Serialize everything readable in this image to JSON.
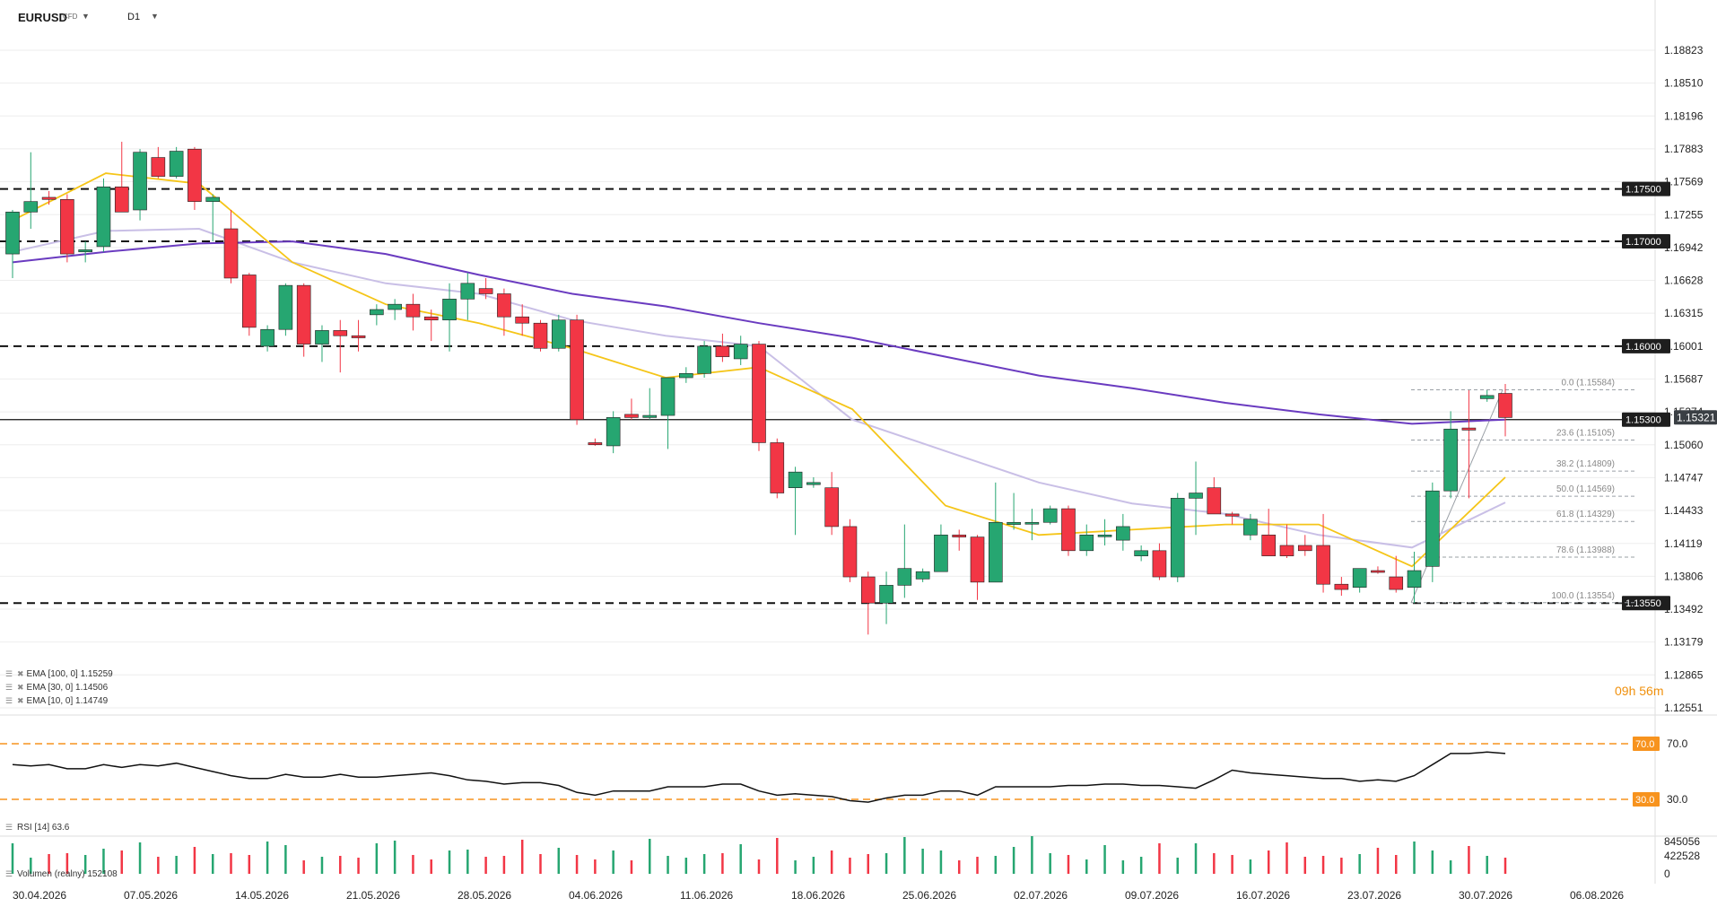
{
  "header": {
    "symbol": "EURUSD",
    "instrument_type": "CFD",
    "timeframe": "D1",
    "symbol_dropdown_icon": "caret-down-icon",
    "timeframe_dropdown_icon": "caret-down-icon"
  },
  "countdown": {
    "hours": "09h",
    "minutes": "56m"
  },
  "indicators": [
    {
      "label": "EMA [100, 0] 1.15259",
      "color": "#6a3bc0"
    },
    {
      "label": "EMA [30, 0] 1.14506",
      "color": "#c9bfe6"
    },
    {
      "label": "EMA [10, 0] 1.14749",
      "color": "#f5c518"
    }
  ],
  "rsi_legend": "RSI [14] 63.6",
  "volume_legend": "Volumen (realny) 152108",
  "colors": {
    "up": "#26a671",
    "down": "#f23645",
    "ema100": "#6a3bc0",
    "ema30": "#c9bfe6",
    "ema10": "#f5c518",
    "rsi_band": "#f7931e"
  },
  "chart_data": {
    "type": "candlestick",
    "symbol": "EURUSD",
    "price_axis_ticks": [
      "1.18823",
      "1.18510",
      "1.18196",
      "1.17883",
      "1.17569",
      "1.17255",
      "1.16942",
      "1.16628",
      "1.16315",
      "1.16001",
      "1.15687",
      "1.15374",
      "1.15060",
      "1.14747",
      "1.14433",
      "1.14119",
      "1.13806",
      "1.13492",
      "1.13179",
      "1.12865",
      "1.12551"
    ],
    "date_axis_ticks": [
      "30.04.2026",
      "07.05.2026",
      "14.05.2026",
      "21.05.2026",
      "28.05.2026",
      "04.06.2026",
      "11.06.2026",
      "18.06.2026",
      "25.06.2026",
      "02.07.2026",
      "09.07.2026",
      "16.07.2026",
      "23.07.2026",
      "30.07.2026",
      "06.08.2026"
    ],
    "current_price": "1.15321",
    "horizontal_levels": [
      {
        "value": 1.175,
        "label": "1.17500"
      },
      {
        "value": 1.17,
        "label": "1.17000"
      },
      {
        "value": 1.16,
        "label": "1.16000"
      },
      {
        "value": 1.153,
        "label": "1.15300"
      },
      {
        "value": 1.1355,
        "label": "1.13550"
      }
    ],
    "fibonacci": [
      {
        "level": "0.0",
        "value": 1.15584
      },
      {
        "level": "23.6",
        "value": 1.15105
      },
      {
        "level": "38.2",
        "value": 1.14809
      },
      {
        "level": "50.0",
        "value": 1.14569
      },
      {
        "level": "61.8",
        "value": 1.14329
      },
      {
        "level": "78.6",
        "value": 1.13988
      },
      {
        "level": "100.0",
        "value": 1.13554
      }
    ],
    "candles": [
      [
        1.1688,
        1.173,
        1.1665,
        1.1728
      ],
      [
        1.1728,
        1.1785,
        1.1712,
        1.1738
      ],
      [
        1.1742,
        1.1748,
        1.1735,
        1.174
      ],
      [
        1.174,
        1.1745,
        1.168,
        1.1688
      ],
      [
        1.169,
        1.17,
        1.168,
        1.1692
      ],
      [
        1.1695,
        1.176,
        1.169,
        1.1752
      ],
      [
        1.1752,
        1.1795,
        1.1728,
        1.1728
      ],
      [
        1.173,
        1.1788,
        1.172,
        1.1785
      ],
      [
        1.178,
        1.179,
        1.176,
        1.1762
      ],
      [
        1.1762,
        1.179,
        1.176,
        1.1786
      ],
      [
        1.1788,
        1.179,
        1.173,
        1.1738
      ],
      [
        1.1738,
        1.1745,
        1.17,
        1.1742
      ],
      [
        1.1712,
        1.173,
        1.166,
        1.1665
      ],
      [
        1.1668,
        1.167,
        1.161,
        1.1618
      ],
      [
        1.16,
        1.162,
        1.1595,
        1.1616
      ],
      [
        1.1616,
        1.166,
        1.161,
        1.1658
      ],
      [
        1.1658,
        1.166,
        1.159,
        1.1602
      ],
      [
        1.1602,
        1.162,
        1.1585,
        1.1615
      ],
      [
        1.1615,
        1.1625,
        1.1575,
        1.161
      ],
      [
        1.161,
        1.1625,
        1.1595,
        1.1608
      ],
      [
        1.163,
        1.164,
        1.162,
        1.1635
      ],
      [
        1.1635,
        1.1645,
        1.1625,
        1.164
      ],
      [
        1.164,
        1.165,
        1.1615,
        1.1628
      ],
      [
        1.1628,
        1.1635,
        1.1605,
        1.1625
      ],
      [
        1.1625,
        1.166,
        1.1595,
        1.1645
      ],
      [
        1.1645,
        1.167,
        1.1625,
        1.166
      ],
      [
        1.1655,
        1.1665,
        1.1645,
        1.165
      ],
      [
        1.165,
        1.1655,
        1.161,
        1.1628
      ],
      [
        1.1628,
        1.164,
        1.161,
        1.1622
      ],
      [
        1.1622,
        1.1625,
        1.1595,
        1.1598
      ],
      [
        1.1598,
        1.163,
        1.1595,
        1.1625
      ],
      [
        1.1625,
        1.163,
        1.1525,
        1.153
      ],
      [
        1.1508,
        1.1512,
        1.1505,
        1.1506
      ],
      [
        1.1505,
        1.1538,
        1.1498,
        1.1532
      ],
      [
        1.1535,
        1.155,
        1.153,
        1.1532
      ],
      [
        1.1532,
        1.156,
        1.153,
        1.1534
      ],
      [
        1.1534,
        1.157,
        1.1502,
        1.157
      ],
      [
        1.157,
        1.158,
        1.1565,
        1.1574
      ],
      [
        1.1574,
        1.1605,
        1.157,
        1.16
      ],
      [
        1.16,
        1.1612,
        1.1585,
        1.159
      ],
      [
        1.1588,
        1.161,
        1.1582,
        1.1602
      ],
      [
        1.1602,
        1.1605,
        1.15,
        1.1508
      ],
      [
        1.1508,
        1.1512,
        1.1455,
        1.146
      ],
      [
        1.1465,
        1.1485,
        1.142,
        1.148
      ],
      [
        1.1468,
        1.1475,
        1.1465,
        1.147
      ],
      [
        1.1465,
        1.148,
        1.142,
        1.1428
      ],
      [
        1.1428,
        1.1435,
        1.1375,
        1.138
      ],
      [
        1.138,
        1.1385,
        1.1325,
        1.1355
      ],
      [
        1.1355,
        1.1385,
        1.1335,
        1.1372
      ],
      [
        1.1372,
        1.143,
        1.136,
        1.1388
      ],
      [
        1.1378,
        1.1388,
        1.1375,
        1.1385
      ],
      [
        1.1385,
        1.143,
        1.1385,
        1.142
      ],
      [
        1.142,
        1.1425,
        1.1405,
        1.1418
      ],
      [
        1.1418,
        1.142,
        1.1358,
        1.1375
      ],
      [
        1.1375,
        1.147,
        1.1375,
        1.1432
      ],
      [
        1.143,
        1.146,
        1.1425,
        1.1432
      ],
      [
        1.1432,
        1.1445,
        1.1415,
        1.1432
      ],
      [
        1.1432,
        1.1448,
        1.143,
        1.1445
      ],
      [
        1.1445,
        1.1448,
        1.14,
        1.1405
      ],
      [
        1.1405,
        1.143,
        1.14,
        1.142
      ],
      [
        1.142,
        1.1435,
        1.141,
        1.142
      ],
      [
        1.1415,
        1.144,
        1.1405,
        1.1428
      ],
      [
        1.14,
        1.141,
        1.1395,
        1.1405
      ],
      [
        1.1405,
        1.1412,
        1.1377,
        1.138
      ],
      [
        1.138,
        1.146,
        1.1375,
        1.1455
      ],
      [
        1.1455,
        1.149,
        1.142,
        1.146
      ],
      [
        1.1465,
        1.1475,
        1.144,
        1.144
      ],
      [
        1.144,
        1.1442,
        1.143,
        1.1438
      ],
      [
        1.142,
        1.144,
        1.1415,
        1.1435
      ],
      [
        1.142,
        1.1445,
        1.14,
        1.14
      ],
      [
        1.141,
        1.143,
        1.1398,
        1.14
      ],
      [
        1.141,
        1.142,
        1.14,
        1.1405
      ],
      [
        1.141,
        1.144,
        1.1365,
        1.1373
      ],
      [
        1.1373,
        1.138,
        1.1362,
        1.1368
      ],
      [
        1.137,
        1.1388,
        1.1365,
        1.1388
      ],
      [
        1.1386,
        1.139,
        1.1383,
        1.1385
      ],
      [
        1.138,
        1.14,
        1.1365,
        1.1368
      ],
      [
        1.137,
        1.1404,
        1.1355,
        1.1386
      ],
      [
        1.139,
        1.147,
        1.1375,
        1.1462
      ],
      [
        1.1462,
        1.1538,
        1.1455,
        1.1521
      ],
      [
        1.1522,
        1.1558,
        1.1455,
        1.152
      ],
      [
        1.155,
        1.1558,
        1.1547,
        1.1553
      ],
      [
        1.1555,
        1.1564,
        1.1514,
        1.1532
      ]
    ],
    "ema100": [
      1.168,
      1.169,
      1.1698,
      1.17,
      1.1688,
      1.1668,
      1.165,
      1.1638,
      1.1622,
      1.1608,
      1.159,
      1.1572,
      1.156,
      1.1546,
      1.1535,
      1.1526,
      1.153
    ],
    "ema30": [
      1.169,
      1.171,
      1.1712,
      1.168,
      1.166,
      1.165,
      1.1625,
      1.161,
      1.16,
      1.153,
      1.15,
      1.147,
      1.145,
      1.144,
      1.142,
      1.1408,
      1.1451
    ],
    "ema10": [
      1.172,
      1.1765,
      1.1755,
      1.168,
      1.164,
      1.1622,
      1.1598,
      1.157,
      1.158,
      1.154,
      1.1448,
      1.142,
      1.1425,
      1.143,
      1.143,
      1.139,
      1.1475
    ],
    "rsi": {
      "levels": [
        70,
        30
      ],
      "upper_label": "70.0",
      "lower_label": "30.0",
      "axis_ticks": [
        "70.0",
        "30.0"
      ]
    },
    "volume": {
      "axis_ticks": [
        "845056",
        "422528",
        "0"
      ]
    }
  }
}
